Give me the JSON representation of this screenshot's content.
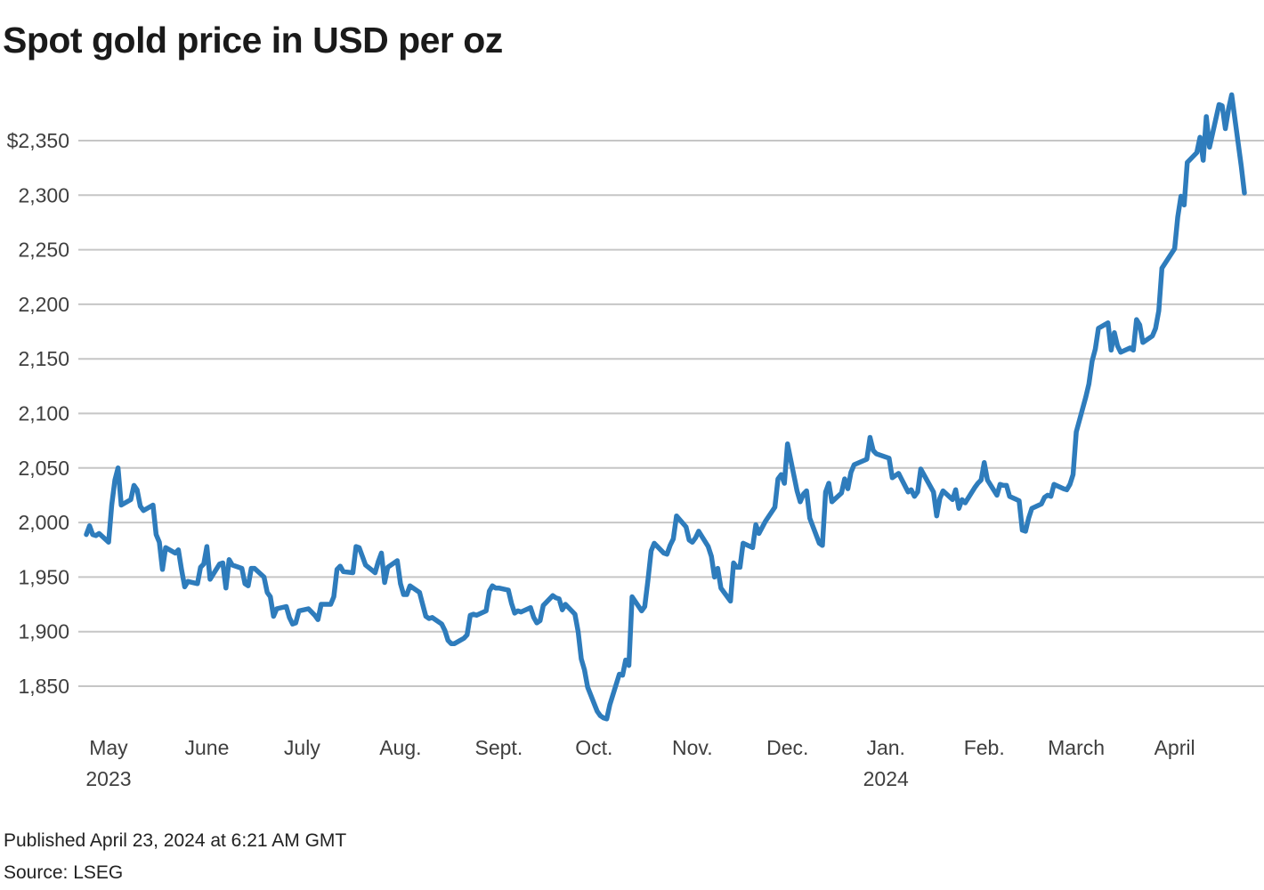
{
  "title": "Spot gold price in USD per oz",
  "published": "Published April 23, 2024 at 6:21 AM GMT",
  "source": "Source: LSEG",
  "chart_data": {
    "type": "line",
    "title": "Spot gold price in USD per oz",
    "series_name": "Spot gold price (USD per oz)",
    "line_color": "#2e7cbc",
    "grid_color": "#c6c6c6",
    "label_color": "#3f3f3f",
    "grid_on": true,
    "legend": "none",
    "ylim": [
      1805,
      2400
    ],
    "x_range": [
      "2023-04-24",
      "2024-04-23"
    ],
    "y_ticks": [
      {
        "value": 2350,
        "label": "$2,350"
      },
      {
        "value": 2300,
        "label": "2,300"
      },
      {
        "value": 2250,
        "label": "2,250"
      },
      {
        "value": 2200,
        "label": "2,200"
      },
      {
        "value": 2150,
        "label": "2,150"
      },
      {
        "value": 2100,
        "label": "2,100"
      },
      {
        "value": 2050,
        "label": "2,050"
      },
      {
        "value": 2000,
        "label": "2,000"
      },
      {
        "value": 1950,
        "label": "1,950"
      },
      {
        "value": 1900,
        "label": "1,900"
      },
      {
        "value": 1850,
        "label": "1,850"
      }
    ],
    "x_ticks": [
      {
        "date": "2023-05-01",
        "label": "May",
        "sublabel": "2023"
      },
      {
        "date": "2023-06-01",
        "label": "June",
        "sublabel": ""
      },
      {
        "date": "2023-07-01",
        "label": "July",
        "sublabel": ""
      },
      {
        "date": "2023-08-01",
        "label": "Aug.",
        "sublabel": ""
      },
      {
        "date": "2023-09-01",
        "label": "Sept.",
        "sublabel": ""
      },
      {
        "date": "2023-10-01",
        "label": "Oct.",
        "sublabel": ""
      },
      {
        "date": "2023-11-01",
        "label": "Nov.",
        "sublabel": ""
      },
      {
        "date": "2023-12-01",
        "label": "Dec.",
        "sublabel": ""
      },
      {
        "date": "2024-01-01",
        "label": "Jan.",
        "sublabel": "2024"
      },
      {
        "date": "2024-02-01",
        "label": "Feb.",
        "sublabel": ""
      },
      {
        "date": "2024-03-01",
        "label": "March",
        "sublabel": ""
      },
      {
        "date": "2024-04-01",
        "label": "April",
        "sublabel": ""
      }
    ],
    "points": [
      [
        "2023-04-24",
        1989
      ],
      [
        "2023-04-25",
        1997
      ],
      [
        "2023-04-26",
        1989
      ],
      [
        "2023-04-27",
        1988
      ],
      [
        "2023-04-28",
        1990
      ],
      [
        "2023-05-01",
        1982
      ],
      [
        "2023-05-02",
        2016
      ],
      [
        "2023-05-03",
        2039
      ],
      [
        "2023-05-04",
        2050
      ],
      [
        "2023-05-05",
        2016
      ],
      [
        "2023-05-08",
        2021
      ],
      [
        "2023-05-09",
        2034
      ],
      [
        "2023-05-10",
        2030
      ],
      [
        "2023-05-11",
        2015
      ],
      [
        "2023-05-12",
        2011
      ],
      [
        "2023-05-15",
        2016
      ],
      [
        "2023-05-16",
        1989
      ],
      [
        "2023-05-17",
        1982
      ],
      [
        "2023-05-18",
        1957
      ],
      [
        "2023-05-19",
        1977
      ],
      [
        "2023-05-22",
        1972
      ],
      [
        "2023-05-23",
        1975
      ],
      [
        "2023-05-24",
        1957
      ],
      [
        "2023-05-25",
        1941
      ],
      [
        "2023-05-26",
        1946
      ],
      [
        "2023-05-29",
        1944
      ],
      [
        "2023-05-30",
        1959
      ],
      [
        "2023-05-31",
        1962
      ],
      [
        "2023-06-01",
        1978
      ],
      [
        "2023-06-02",
        1948
      ],
      [
        "2023-06-05",
        1962
      ],
      [
        "2023-06-06",
        1963
      ],
      [
        "2023-06-07",
        1940
      ],
      [
        "2023-06-08",
        1966
      ],
      [
        "2023-06-09",
        1961
      ],
      [
        "2023-06-12",
        1958
      ],
      [
        "2023-06-13",
        1944
      ],
      [
        "2023-06-14",
        1942
      ],
      [
        "2023-06-15",
        1958
      ],
      [
        "2023-06-16",
        1958
      ],
      [
        "2023-06-19",
        1950
      ],
      [
        "2023-06-20",
        1936
      ],
      [
        "2023-06-21",
        1932
      ],
      [
        "2023-06-22",
        1914
      ],
      [
        "2023-06-23",
        1921
      ],
      [
        "2023-06-26",
        1923
      ],
      [
        "2023-06-27",
        1913
      ],
      [
        "2023-06-28",
        1907
      ],
      [
        "2023-06-29",
        1908
      ],
      [
        "2023-06-30",
        1919
      ],
      [
        "2023-07-03",
        1921
      ],
      [
        "2023-07-05",
        1915
      ],
      [
        "2023-07-06",
        1911
      ],
      [
        "2023-07-07",
        1925
      ],
      [
        "2023-07-10",
        1925
      ],
      [
        "2023-07-11",
        1932
      ],
      [
        "2023-07-12",
        1957
      ],
      [
        "2023-07-13",
        1960
      ],
      [
        "2023-07-14",
        1955
      ],
      [
        "2023-07-17",
        1954
      ],
      [
        "2023-07-18",
        1978
      ],
      [
        "2023-07-19",
        1977
      ],
      [
        "2023-07-20",
        1969
      ],
      [
        "2023-07-21",
        1961
      ],
      [
        "2023-07-24",
        1954
      ],
      [
        "2023-07-25",
        1964
      ],
      [
        "2023-07-26",
        1972
      ],
      [
        "2023-07-27",
        1945
      ],
      [
        "2023-07-28",
        1959
      ],
      [
        "2023-07-31",
        1965
      ],
      [
        "2023-08-01",
        1944
      ],
      [
        "2023-08-02",
        1934
      ],
      [
        "2023-08-03",
        1934
      ],
      [
        "2023-08-04",
        1942
      ],
      [
        "2023-08-07",
        1936
      ],
      [
        "2023-08-08",
        1925
      ],
      [
        "2023-08-09",
        1914
      ],
      [
        "2023-08-10",
        1912
      ],
      [
        "2023-08-11",
        1913
      ],
      [
        "2023-08-14",
        1907
      ],
      [
        "2023-08-15",
        1901
      ],
      [
        "2023-08-16",
        1892
      ],
      [
        "2023-08-17",
        1889
      ],
      [
        "2023-08-18",
        1889
      ],
      [
        "2023-08-21",
        1894
      ],
      [
        "2023-08-22",
        1897
      ],
      [
        "2023-08-23",
        1915
      ],
      [
        "2023-08-24",
        1916
      ],
      [
        "2023-08-25",
        1915
      ],
      [
        "2023-08-28",
        1919
      ],
      [
        "2023-08-29",
        1937
      ],
      [
        "2023-08-30",
        1942
      ],
      [
        "2023-08-31",
        1940
      ],
      [
        "2023-09-01",
        1940
      ],
      [
        "2023-09-04",
        1938
      ],
      [
        "2023-09-05",
        1926
      ],
      [
        "2023-09-06",
        1917
      ],
      [
        "2023-09-07",
        1919
      ],
      [
        "2023-09-08",
        1918
      ],
      [
        "2023-09-11",
        1922
      ],
      [
        "2023-09-12",
        1913
      ],
      [
        "2023-09-13",
        1908
      ],
      [
        "2023-09-14",
        1910
      ],
      [
        "2023-09-15",
        1924
      ],
      [
        "2023-09-18",
        1933
      ],
      [
        "2023-09-19",
        1931
      ],
      [
        "2023-09-20",
        1930
      ],
      [
        "2023-09-21",
        1920
      ],
      [
        "2023-09-22",
        1925
      ],
      [
        "2023-09-25",
        1916
      ],
      [
        "2023-09-26",
        1900
      ],
      [
        "2023-09-27",
        1875
      ],
      [
        "2023-09-28",
        1865
      ],
      [
        "2023-09-29",
        1849
      ],
      [
        "2023-10-02",
        1827
      ],
      [
        "2023-10-03",
        1823
      ],
      [
        "2023-10-04",
        1821
      ],
      [
        "2023-10-05",
        1820
      ],
      [
        "2023-10-06",
        1833
      ],
      [
        "2023-10-09",
        1861
      ],
      [
        "2023-10-10",
        1860
      ],
      [
        "2023-10-11",
        1874
      ],
      [
        "2023-10-12",
        1869
      ],
      [
        "2023-10-13",
        1932
      ],
      [
        "2023-10-16",
        1919
      ],
      [
        "2023-10-17",
        1923
      ],
      [
        "2023-10-18",
        1947
      ],
      [
        "2023-10-19",
        1974
      ],
      [
        "2023-10-20",
        1981
      ],
      [
        "2023-10-23",
        1972
      ],
      [
        "2023-10-24",
        1971
      ],
      [
        "2023-10-25",
        1979
      ],
      [
        "2023-10-26",
        1985
      ],
      [
        "2023-10-27",
        2006
      ],
      [
        "2023-10-30",
        1996
      ],
      [
        "2023-10-31",
        1984
      ],
      [
        "2023-11-01",
        1982
      ],
      [
        "2023-11-02",
        1986
      ],
      [
        "2023-11-03",
        1992
      ],
      [
        "2023-11-06",
        1978
      ],
      [
        "2023-11-07",
        1969
      ],
      [
        "2023-11-08",
        1950
      ],
      [
        "2023-11-09",
        1958
      ],
      [
        "2023-11-10",
        1940
      ],
      [
        "2023-11-13",
        1928
      ],
      [
        "2023-11-14",
        1963
      ],
      [
        "2023-11-15",
        1959
      ],
      [
        "2023-11-16",
        1959
      ],
      [
        "2023-11-17",
        1981
      ],
      [
        "2023-11-20",
        1977
      ],
      [
        "2023-11-21",
        1998
      ],
      [
        "2023-11-22",
        1990
      ],
      [
        "2023-11-24",
        2001
      ],
      [
        "2023-11-27",
        2014
      ],
      [
        "2023-11-28",
        2040
      ],
      [
        "2023-11-29",
        2044
      ],
      [
        "2023-11-30",
        2036
      ],
      [
        "2023-12-01",
        2072
      ],
      [
        "2023-12-04",
        2029
      ],
      [
        "2023-12-05",
        2019
      ],
      [
        "2023-12-06",
        2026
      ],
      [
        "2023-12-07",
        2029
      ],
      [
        "2023-12-08",
        2004
      ],
      [
        "2023-12-11",
        1981
      ],
      [
        "2023-12-12",
        1979
      ],
      [
        "2023-12-13",
        2028
      ],
      [
        "2023-12-14",
        2036
      ],
      [
        "2023-12-15",
        2019
      ],
      [
        "2023-12-18",
        2027
      ],
      [
        "2023-12-19",
        2040
      ],
      [
        "2023-12-20",
        2031
      ],
      [
        "2023-12-21",
        2046
      ],
      [
        "2023-12-22",
        2053
      ],
      [
        "2023-12-26",
        2058
      ],
      [
        "2023-12-27",
        2078
      ],
      [
        "2023-12-28",
        2066
      ],
      [
        "2023-12-29",
        2063
      ],
      [
        "2024-01-02",
        2059
      ],
      [
        "2024-01-03",
        2041
      ],
      [
        "2024-01-04",
        2043
      ],
      [
        "2024-01-05",
        2045
      ],
      [
        "2024-01-08",
        2028
      ],
      [
        "2024-01-09",
        2030
      ],
      [
        "2024-01-10",
        2024
      ],
      [
        "2024-01-11",
        2028
      ],
      [
        "2024-01-12",
        2049
      ],
      [
        "2024-01-16",
        2028
      ],
      [
        "2024-01-17",
        2006
      ],
      [
        "2024-01-18",
        2022
      ],
      [
        "2024-01-19",
        2029
      ],
      [
        "2024-01-22",
        2021
      ],
      [
        "2024-01-23",
        2030
      ],
      [
        "2024-01-24",
        2013
      ],
      [
        "2024-01-25",
        2021
      ],
      [
        "2024-01-26",
        2018
      ],
      [
        "2024-01-29",
        2032
      ],
      [
        "2024-01-30",
        2036
      ],
      [
        "2024-01-31",
        2039
      ],
      [
        "2024-02-01",
        2055
      ],
      [
        "2024-02-02",
        2039
      ],
      [
        "2024-02-05",
        2025
      ],
      [
        "2024-02-06",
        2035
      ],
      [
        "2024-02-07",
        2034
      ],
      [
        "2024-02-08",
        2034
      ],
      [
        "2024-02-09",
        2024
      ],
      [
        "2024-02-12",
        2020
      ],
      [
        "2024-02-13",
        1993
      ],
      [
        "2024-02-14",
        1992
      ],
      [
        "2024-02-15",
        2004
      ],
      [
        "2024-02-16",
        2013
      ],
      [
        "2024-02-19",
        2017
      ],
      [
        "2024-02-20",
        2023
      ],
      [
        "2024-02-21",
        2025
      ],
      [
        "2024-02-22",
        2024
      ],
      [
        "2024-02-23",
        2035
      ],
      [
        "2024-02-26",
        2031
      ],
      [
        "2024-02-27",
        2030
      ],
      [
        "2024-02-28",
        2035
      ],
      [
        "2024-02-29",
        2044
      ],
      [
        "2024-03-01",
        2083
      ],
      [
        "2024-03-04",
        2115
      ],
      [
        "2024-03-05",
        2127
      ],
      [
        "2024-03-06",
        2148
      ],
      [
        "2024-03-07",
        2159
      ],
      [
        "2024-03-08",
        2178
      ],
      [
        "2024-03-11",
        2183
      ],
      [
        "2024-03-12",
        2158
      ],
      [
        "2024-03-13",
        2174
      ],
      [
        "2024-03-14",
        2162
      ],
      [
        "2024-03-15",
        2156
      ],
      [
        "2024-03-18",
        2160
      ],
      [
        "2024-03-19",
        2158
      ],
      [
        "2024-03-20",
        2186
      ],
      [
        "2024-03-21",
        2181
      ],
      [
        "2024-03-22",
        2165
      ],
      [
        "2024-03-25",
        2171
      ],
      [
        "2024-03-26",
        2178
      ],
      [
        "2024-03-27",
        2194
      ],
      [
        "2024-03-28",
        2233
      ],
      [
        "2024-04-01",
        2251
      ],
      [
        "2024-04-02",
        2280
      ],
      [
        "2024-04-03",
        2299
      ],
      [
        "2024-04-04",
        2291
      ],
      [
        "2024-04-05",
        2330
      ],
      [
        "2024-04-08",
        2339
      ],
      [
        "2024-04-09",
        2353
      ],
      [
        "2024-04-10",
        2332
      ],
      [
        "2024-04-11",
        2372
      ],
      [
        "2024-04-12",
        2344
      ],
      [
        "2024-04-15",
        2383
      ],
      [
        "2024-04-16",
        2382
      ],
      [
        "2024-04-17",
        2361
      ],
      [
        "2024-04-18",
        2379
      ],
      [
        "2024-04-19",
        2392
      ],
      [
        "2024-04-22",
        2327
      ],
      [
        "2024-04-23",
        2302
      ]
    ]
  }
}
